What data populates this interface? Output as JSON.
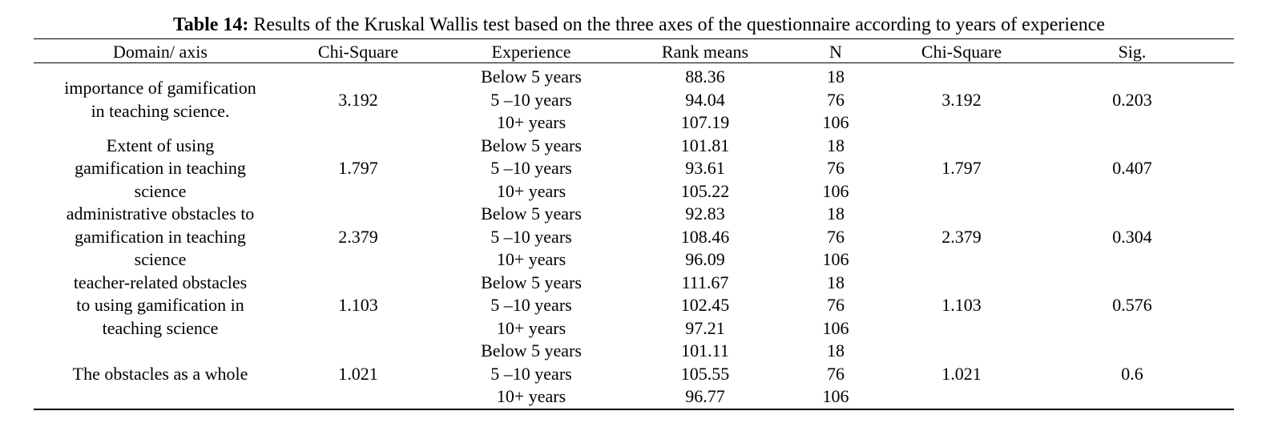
{
  "title": {
    "label": "Table 14:",
    "text": "Results of the Kruskal Wallis test based on the three axes of the questionnaire according to years of experience"
  },
  "table": {
    "header": [
      "Domain/ axis",
      "Chi-Square",
      "Experience",
      "Rank means",
      "N",
      "Chi-Square",
      "Sig."
    ],
    "rows": [
      {
        "domain": [
          "importance of gamification",
          "in teaching science."
        ],
        "chi_square": "3.192",
        "experience": [
          "Below 5 years",
          "5 –10 years",
          "10+ years"
        ],
        "rank_means": [
          "88.36",
          "94.04",
          "107.19"
        ],
        "n": [
          "18",
          "76",
          "106"
        ],
        "chi_square_2": "3.192",
        "sig": "0.203"
      },
      {
        "domain": [
          "Extent of using",
          "gamification in teaching",
          "science"
        ],
        "chi_square": "1.797",
        "experience": [
          "Below 5 years",
          "5 –10 years",
          "10+ years"
        ],
        "rank_means": [
          "101.81",
          "93.61",
          "105.22"
        ],
        "n": [
          "18",
          "76",
          "106"
        ],
        "chi_square_2": "1.797",
        "sig": "0.407"
      },
      {
        "domain": [
          "administrative obstacles to",
          "gamification in teaching",
          "science"
        ],
        "chi_square": "2.379",
        "experience": [
          "Below 5 years",
          "5 –10 years",
          "10+ years"
        ],
        "rank_means": [
          "92.83",
          "108.46",
          "96.09"
        ],
        "n": [
          "18",
          "76",
          "106"
        ],
        "chi_square_2": "2.379",
        "sig": "0.304"
      },
      {
        "domain": [
          "teacher-related obstacles",
          "to using gamification in",
          "teaching science"
        ],
        "chi_square": "1.103",
        "experience": [
          "Below 5 years",
          "5 –10 years",
          "10+ years"
        ],
        "rank_means": [
          "111.67",
          "102.45",
          "97.21"
        ],
        "n": [
          "18",
          "76",
          "106"
        ],
        "chi_square_2": "1.103",
        "sig": "0.576"
      },
      {
        "domain": [
          "The obstacles as a whole"
        ],
        "chi_square": "1.021",
        "experience": [
          "Below 5 years",
          "5 –10 years",
          "10+ years"
        ],
        "rank_means": [
          "101.11",
          "105.55",
          "96.77"
        ],
        "n": [
          "18",
          "76",
          "106"
        ],
        "chi_square_2": "1.021",
        "sig": "0.6"
      }
    ]
  }
}
